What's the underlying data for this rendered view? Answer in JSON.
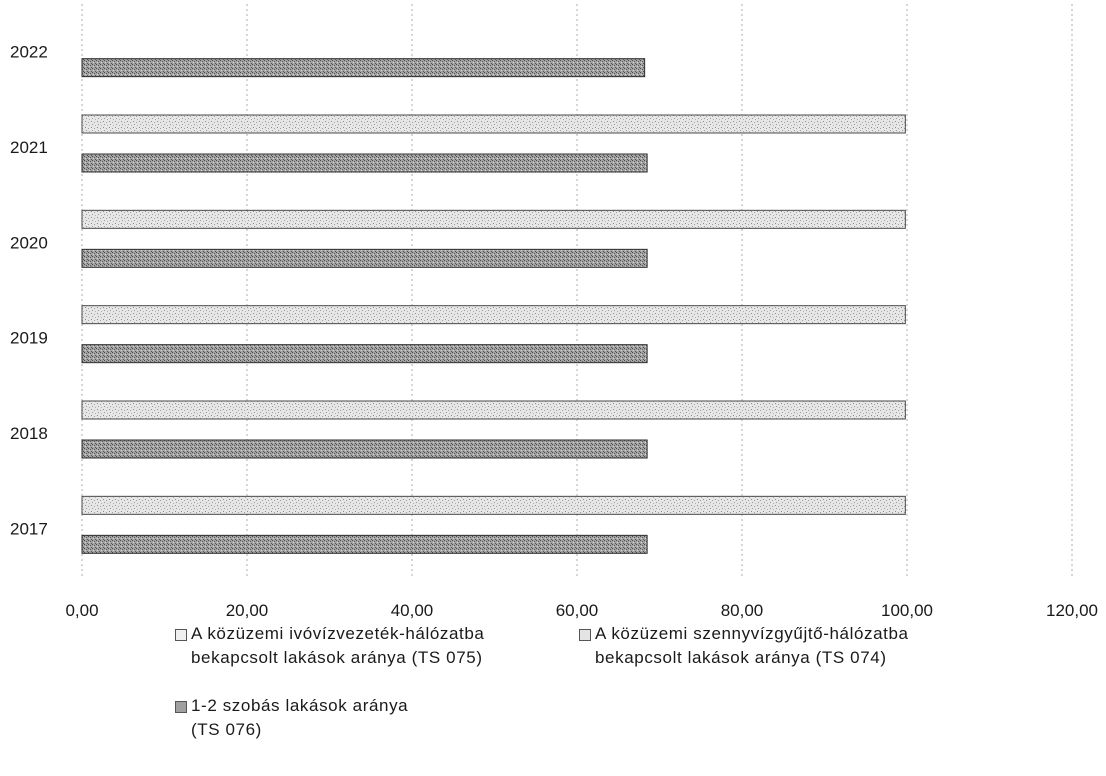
{
  "chart_data": {
    "type": "bar",
    "orientation": "horizontal",
    "title": "",
    "xlabel": "",
    "ylabel": "",
    "xlim": [
      0,
      120
    ],
    "x_ticks": [
      "0,00",
      "20,00",
      "40,00",
      "60,00",
      "80,00",
      "100,00",
      "120,00"
    ],
    "x_tick_values": [
      0,
      20,
      40,
      60,
      80,
      100,
      120
    ],
    "categories": [
      "2017",
      "2018",
      "2019",
      "2020",
      "2021",
      "2022"
    ],
    "grid": "vertical dashed",
    "legend_position": "bottom",
    "series": [
      {
        "name": "A közüzemi ivóvízvezeték-hálózatba\nbekapcsolt lakások aránya (TS 075)",
        "color": "#cfcfcf",
        "values": [
          null,
          null,
          null,
          null,
          null,
          null
        ]
      },
      {
        "name": "A közüzemi szennyvízgyűjtő-hálózatba\nbekapcsolt lakások aránya (TS 074)",
        "color": "#d2d2d2",
        "values": [
          99.8,
          99.8,
          99.8,
          99.8,
          99.8,
          null
        ]
      },
      {
        "name": "1-2 szobás lakások aránya\n(TS 076)",
        "color": "#8a8a8a",
        "values": [
          68.5,
          68.5,
          68.5,
          68.5,
          68.5,
          68.2
        ]
      }
    ]
  }
}
